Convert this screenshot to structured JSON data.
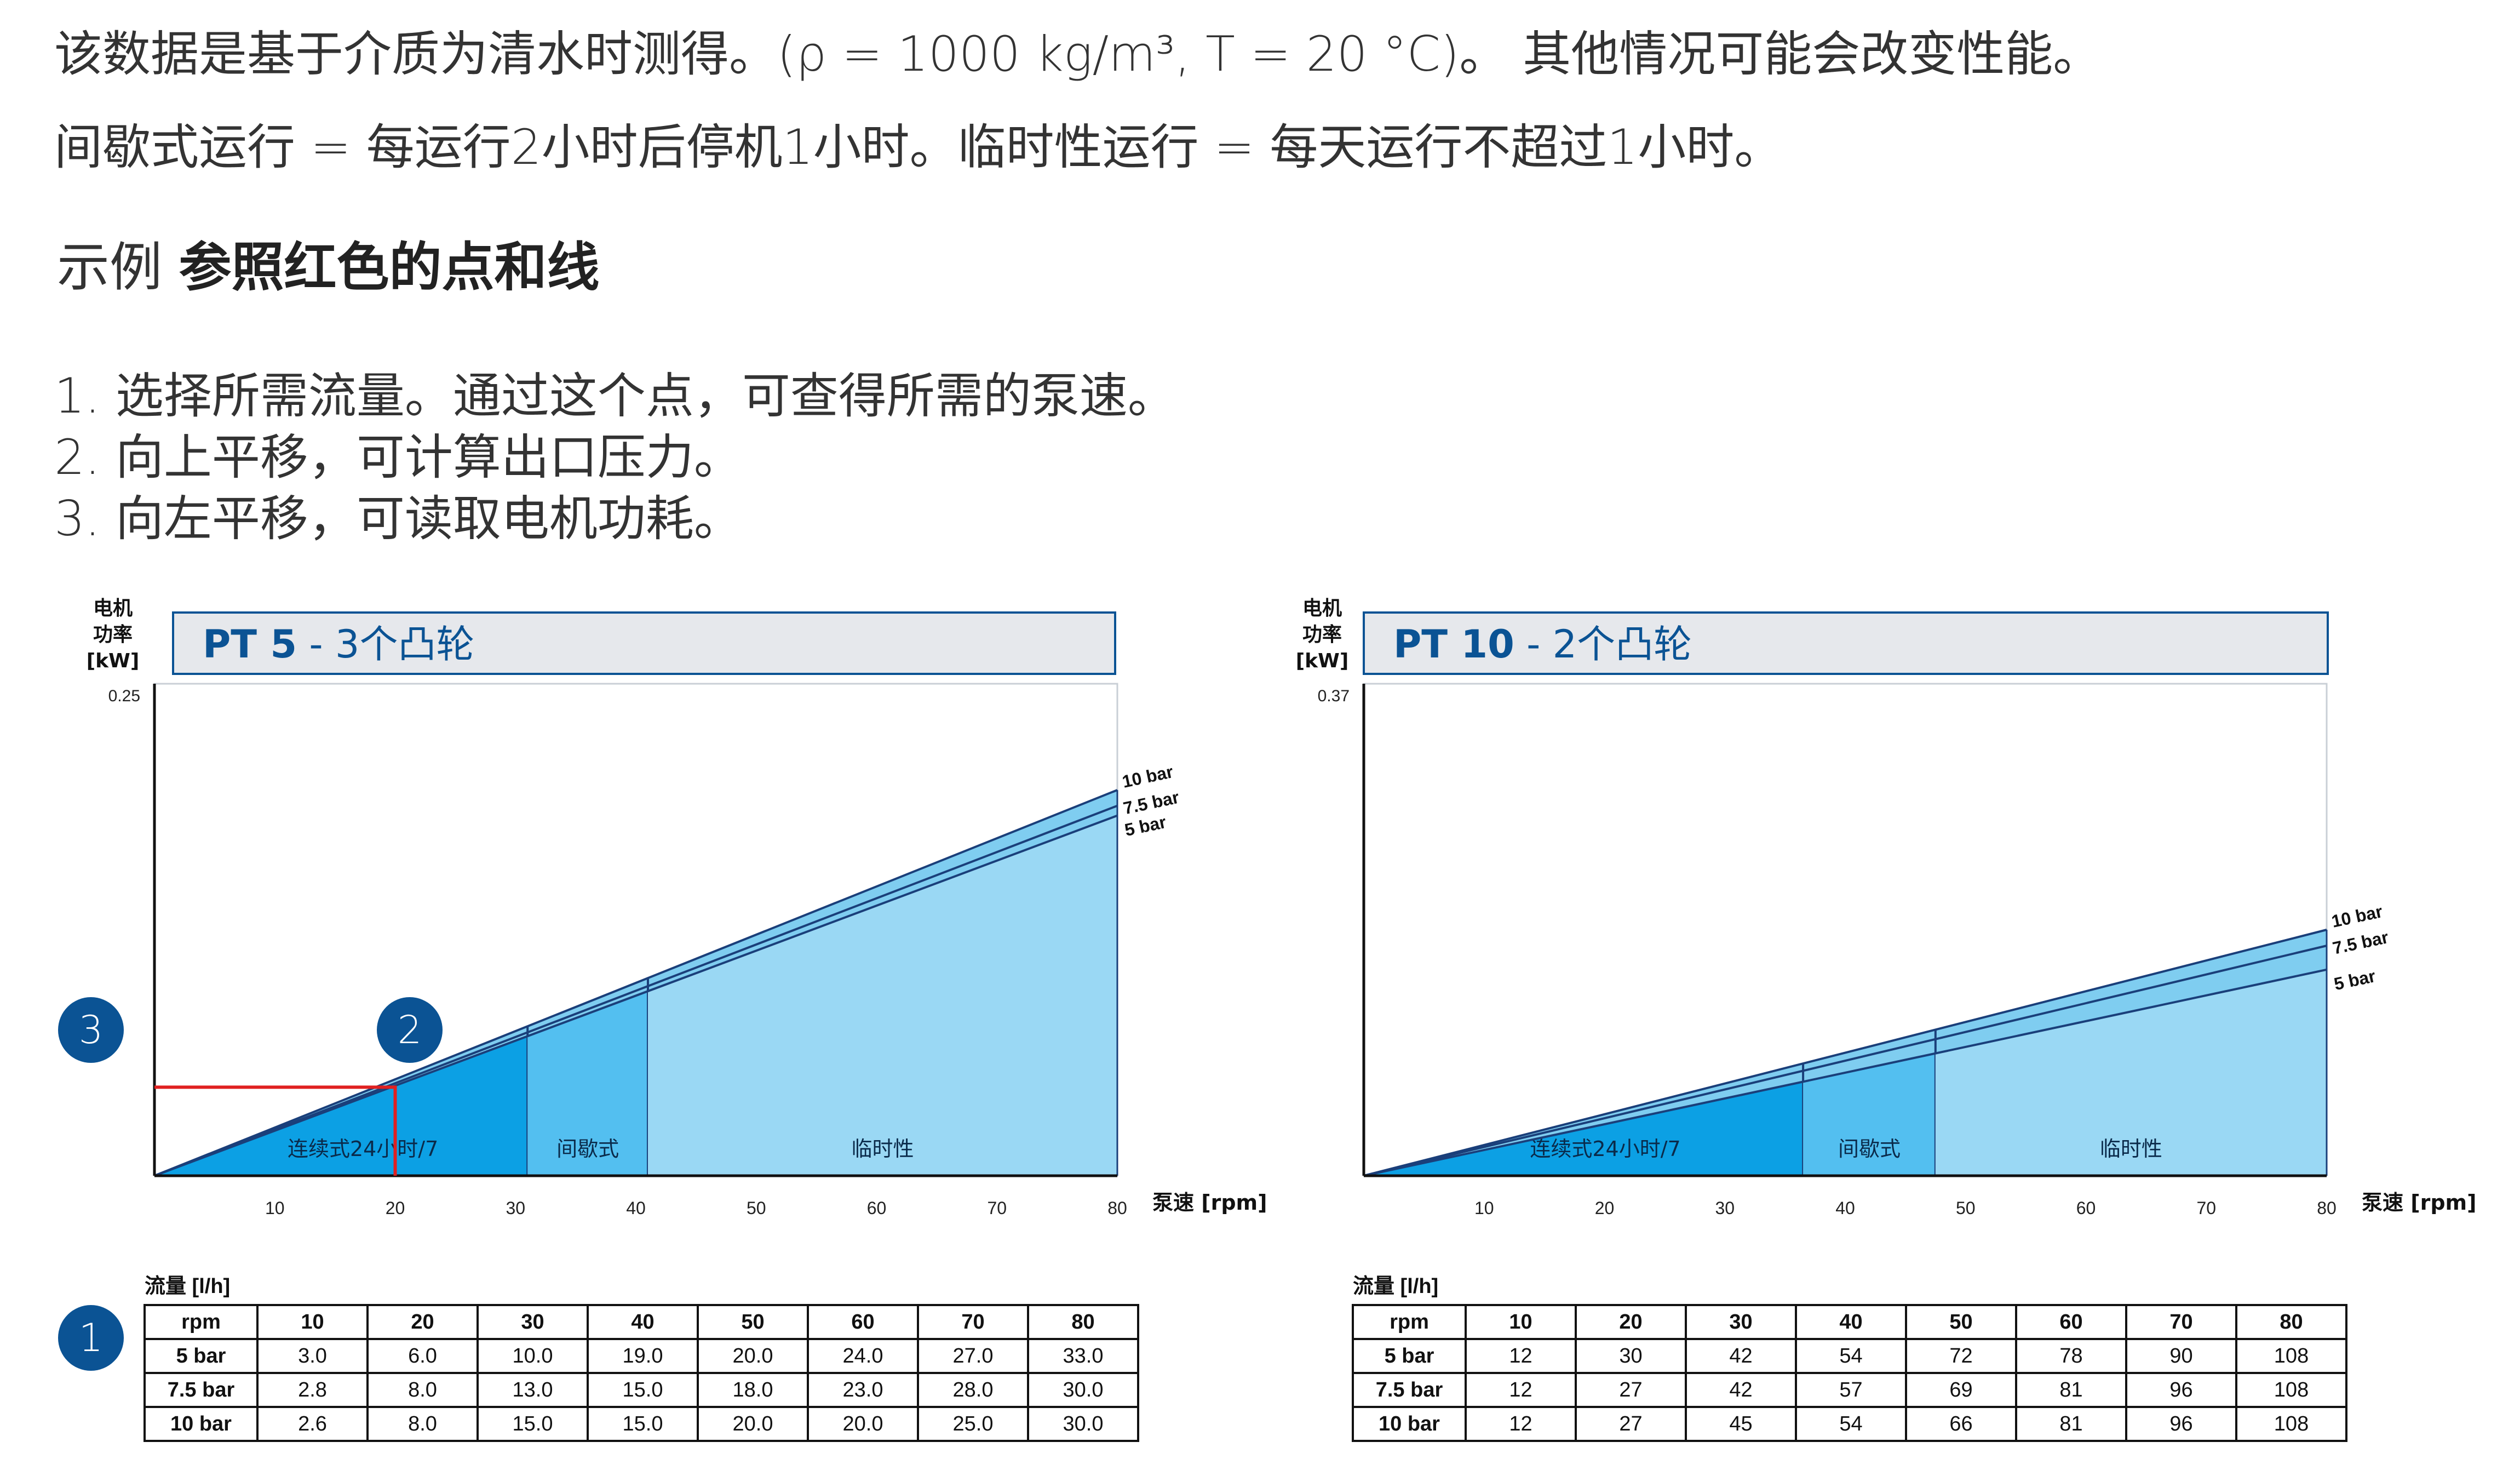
{
  "intro": {
    "line1": "该数据是基于介质为清水时测得。(ρ = 1000 kg/m³, T = 20 °C)。 其他情况可能会改变性能。",
    "line2": "间歇式运行 = 每运行2小时后停机1小时。临时性运行 = 每天运行不超过1小时。"
  },
  "example": {
    "prefix": "示例",
    "bold": "参照红色的点和线"
  },
  "steps": [
    "1. 选择所需流量。通过这个点，可查得所需的泵速。",
    "2. 向上平移，可计算出口压力。",
    "3. 向左平移，可读取电机功耗。"
  ],
  "badges": [
    "1",
    "2",
    "3"
  ],
  "colors": {
    "title_blue": "#0b5394",
    "continuous": "#0ca0e4",
    "intermittent": "#53bff0",
    "temporary": "#9ad8f4",
    "band": "#7fcdf0",
    "line": "#1a3f7a",
    "red": "#e02020",
    "title_bg": "#e6e8ec"
  },
  "chart_data": [
    {
      "type": "area",
      "title_bold": "PT 5",
      "title_rest": " - 3个凸轮",
      "ylabel_lines": [
        "电机",
        "功率",
        "[kW]"
      ],
      "ymax_label": "0.25",
      "xlabel": "泵速 [rpm]",
      "xlim": [
        0,
        80
      ],
      "ylim": [
        0,
        0.25
      ],
      "xticks": [
        10,
        20,
        30,
        40,
        50,
        60,
        70,
        80
      ],
      "series": [
        {
          "name": "10 bar",
          "x": [
            0,
            80
          ],
          "y": [
            0,
            0.196
          ]
        },
        {
          "name": "7.5 bar",
          "x": [
            0,
            80
          ],
          "y": [
            0,
            0.188
          ]
        },
        {
          "name": "5 bar",
          "x": [
            0,
            80
          ],
          "y": [
            0,
            0.183
          ]
        }
      ],
      "zones": [
        {
          "label": "连续式24小时/7",
          "x_end": 31
        },
        {
          "label": "间歇式",
          "x_end": 41
        },
        {
          "label": "临时性",
          "x_end": 80
        }
      ],
      "example_point": {
        "x": 20,
        "y": 0.045
      },
      "table": {
        "caption": "流量 [l/h]",
        "header": [
          "rpm",
          "10",
          "20",
          "30",
          "40",
          "50",
          "60",
          "70",
          "80"
        ],
        "rows": [
          [
            "5 bar",
            "3.0",
            "6.0",
            "10.0",
            "19.0",
            "20.0",
            "24.0",
            "27.0",
            "33.0"
          ],
          [
            "7.5 bar",
            "2.8",
            "8.0",
            "13.0",
            "15.0",
            "18.0",
            "23.0",
            "28.0",
            "30.0"
          ],
          [
            "10 bar",
            "2.6",
            "8.0",
            "15.0",
            "15.0",
            "20.0",
            "20.0",
            "25.0",
            "30.0"
          ]
        ]
      }
    },
    {
      "type": "area",
      "title_bold": "PT 10",
      "title_rest": " - 2个凸轮",
      "ylabel_lines": [
        "电机",
        "功率",
        "[kW]"
      ],
      "ymax_label": "0.37",
      "xlabel": "泵速 [rpm]",
      "xlim": [
        0,
        80
      ],
      "ylim": [
        0,
        0.37
      ],
      "xticks": [
        10,
        20,
        30,
        40,
        50,
        60,
        70,
        80
      ],
      "series": [
        {
          "name": "10 bar",
          "x": [
            0,
            80
          ],
          "y": [
            0,
            0.185
          ]
        },
        {
          "name": "7.5 bar",
          "x": [
            0,
            80
          ],
          "y": [
            0,
            0.173
          ]
        },
        {
          "name": "5 bar",
          "x": [
            0,
            80
          ],
          "y": [
            0,
            0.155
          ]
        }
      ],
      "zones": [
        {
          "label": "连续式24小时/7",
          "x_end": 36.5
        },
        {
          "label": "间歇式",
          "x_end": 47.5
        },
        {
          "label": "临时性",
          "x_end": 80
        }
      ],
      "table": {
        "caption": "流量 [l/h]",
        "header": [
          "rpm",
          "10",
          "20",
          "30",
          "40",
          "50",
          "60",
          "70",
          "80"
        ],
        "rows": [
          [
            "5 bar",
            "12",
            "30",
            "42",
            "54",
            "72",
            "78",
            "90",
            "108"
          ],
          [
            "7.5 bar",
            "12",
            "27",
            "42",
            "57",
            "69",
            "81",
            "96",
            "108"
          ],
          [
            "10 bar",
            "12",
            "27",
            "45",
            "54",
            "66",
            "81",
            "96",
            "108"
          ]
        ]
      }
    }
  ]
}
